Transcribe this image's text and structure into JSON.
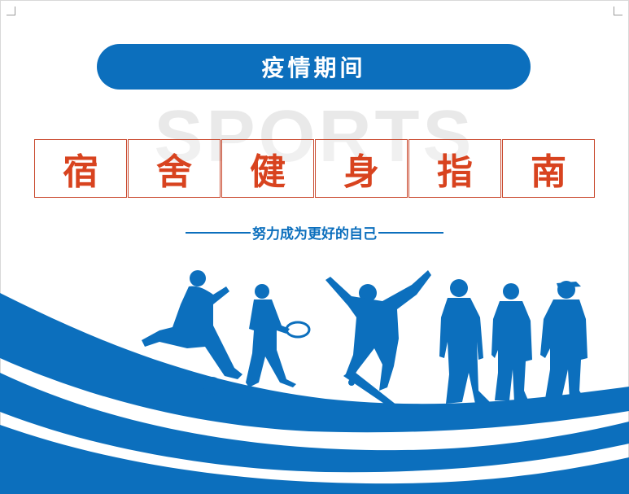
{
  "header": {
    "badge_text": "疫情期间"
  },
  "watermark": {
    "text": "SPORTS"
  },
  "title": {
    "chars": [
      "宿",
      "舍",
      "健",
      "身",
      "指",
      "南"
    ]
  },
  "subtitle": {
    "text": "努力成为更好的自己"
  },
  "colors": {
    "primary_blue": "#0c6fbd",
    "title_red": "#d8431f",
    "border_red": "#c9482d",
    "watermark_gray": "#e9e9e9"
  }
}
